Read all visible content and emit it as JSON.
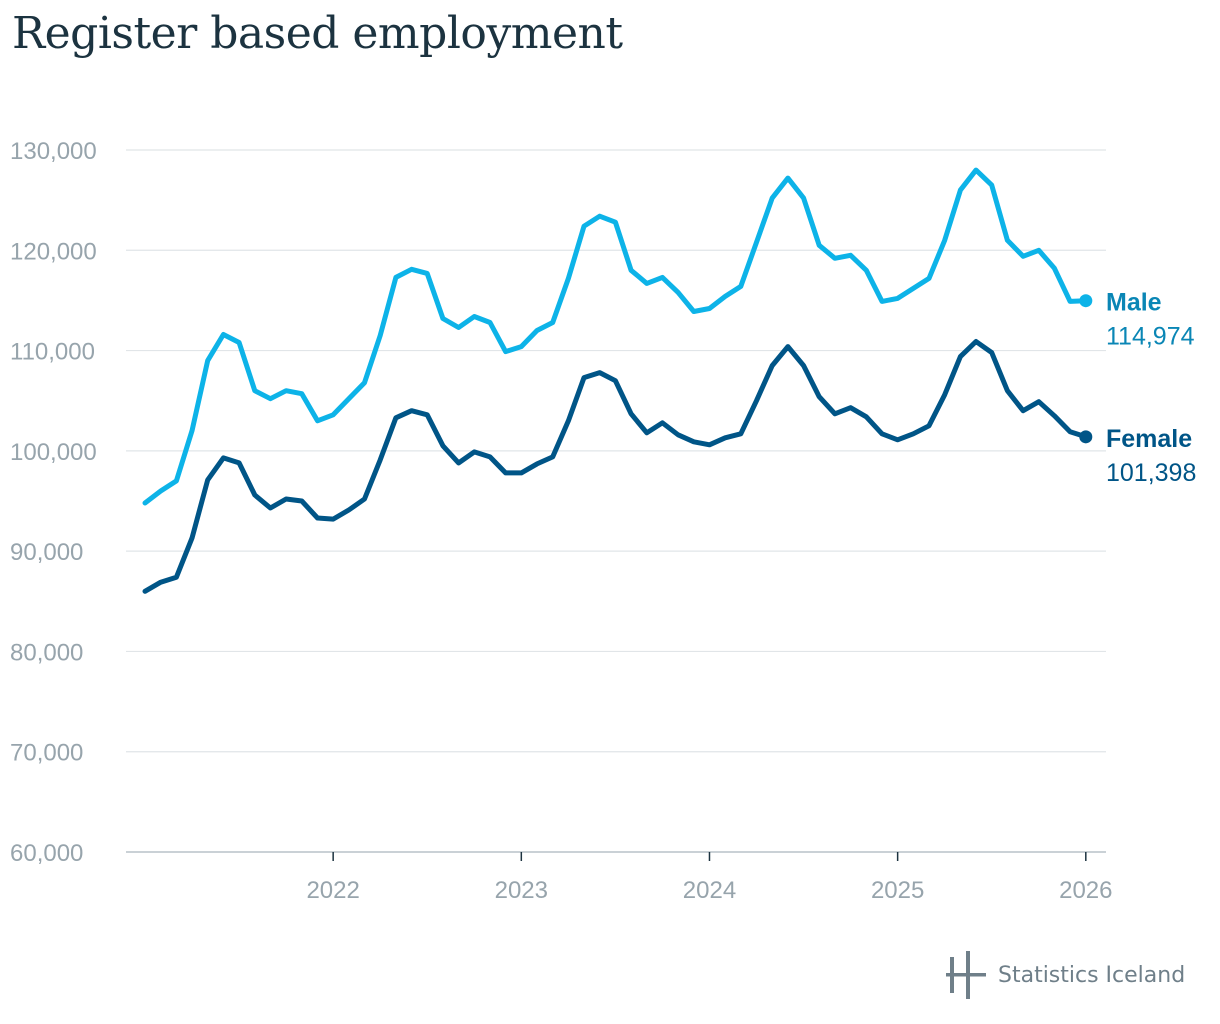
{
  "chart_data": {
    "type": "line",
    "title": "Register based employment",
    "xlabel": "",
    "ylabel": "",
    "ylim": [
      60000,
      130000
    ],
    "yticks": [
      60000,
      70000,
      80000,
      90000,
      100000,
      110000,
      120000,
      130000
    ],
    "ytick_labels": [
      "60,000",
      "70,000",
      "80,000",
      "90,000",
      "100,000",
      "110,000",
      "120,000",
      "130,000"
    ],
    "x_start": "2021-01",
    "xticks": [
      {
        "label": "2022",
        "index": 12
      },
      {
        "label": "2023",
        "index": 24
      },
      {
        "label": "2024",
        "index": 36
      },
      {
        "label": "2025",
        "index": 48
      },
      {
        "label": "2026",
        "index": 60
      }
    ],
    "grid": true,
    "series": [
      {
        "name": "Male",
        "color": "#0db3e8",
        "label_color": "#0a86b5",
        "last_value_label": "114,974",
        "values": [
          94800,
          96000,
          97000,
          102000,
          109000,
          111600,
          110800,
          106000,
          105200,
          106000,
          105700,
          103000,
          103600,
          105200,
          106800,
          111500,
          117300,
          118100,
          117700,
          113200,
          112300,
          113400,
          112800,
          109900,
          110400,
          112000,
          112800,
          117200,
          122400,
          123400,
          122800,
          118000,
          116700,
          117300,
          115800,
          113900,
          114200,
          115400,
          116400,
          120800,
          125200,
          127200,
          125200,
          120500,
          119200,
          119500,
          118000,
          114900,
          115200,
          116200,
          117200,
          121000,
          126000,
          128000,
          126500,
          121000,
          119400,
          120000,
          118200,
          114900,
          114974
        ]
      },
      {
        "name": "Female",
        "color": "#005587",
        "label_color": "#005587",
        "last_value_label": "101,398",
        "values": [
          86000,
          86900,
          87400,
          91300,
          97100,
          99300,
          98800,
          95600,
          94300,
          95200,
          95000,
          93300,
          93200,
          94100,
          95200,
          99100,
          103300,
          104000,
          103600,
          100500,
          98800,
          99900,
          99400,
          97800,
          97800,
          98700,
          99400,
          103000,
          107300,
          107800,
          107000,
          103700,
          101800,
          102800,
          101600,
          100900,
          100600,
          101300,
          101700,
          105000,
          108500,
          110400,
          108500,
          105400,
          103700,
          104300,
          103400,
          101700,
          101100,
          101700,
          102500,
          105600,
          109400,
          110900,
          109800,
          106000,
          104000,
          104900,
          103500,
          101900,
          101398
        ]
      }
    ]
  },
  "brand": {
    "name": "Statistics Iceland"
  }
}
